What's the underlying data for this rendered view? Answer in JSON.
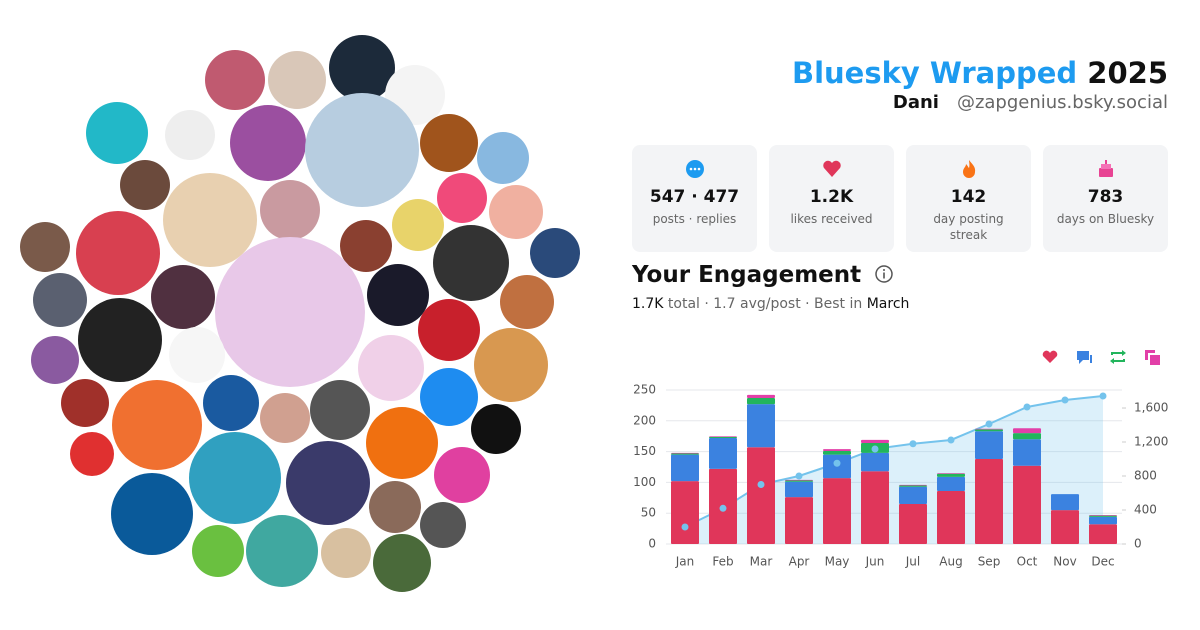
{
  "header": {
    "title": "Bluesky Wrapped",
    "year": "2025",
    "name": "Dani",
    "handle": "@zapgenius.bsky.social"
  },
  "stats": [
    {
      "value": "547 · 477",
      "label": "posts · replies"
    },
    {
      "value": "1.2K",
      "label": "likes received"
    },
    {
      "value": "142",
      "label": "day posting streak"
    },
    {
      "value": "783",
      "label": "days on Bluesky"
    }
  ],
  "engagement": {
    "title": "Your Engagement",
    "total": "1.7K",
    "text": "total · 1.7 avg/post · Best in",
    "best": "March"
  },
  "chart_data": {
    "type": "bar",
    "stacked": true,
    "grid": true,
    "categories": [
      "Jan",
      "Feb",
      "Mar",
      "Apr",
      "May",
      "Jun",
      "Jul",
      "Aug",
      "Sep",
      "Oct",
      "Nov",
      "Dec"
    ],
    "series": [
      {
        "color": "#e0365a",
        "values": [
          102,
          122,
          157,
          76,
          107,
          118,
          65,
          86,
          138,
          127,
          55,
          32
        ]
      },
      {
        "color": "#3b82e0",
        "values": [
          43,
          50,
          70,
          25,
          38,
          30,
          28,
          23,
          45,
          43,
          26,
          12
        ]
      },
      {
        "color": "#22b55c",
        "values": [
          2,
          2,
          10,
          2,
          6,
          16,
          2,
          5,
          3,
          10,
          0,
          2
        ]
      },
      {
        "color": "#e23fa8",
        "values": [
          1,
          1,
          5,
          1,
          3,
          5,
          1,
          1,
          1,
          8,
          0,
          1
        ]
      },
      {
        "color": "#74c3ec",
        "type": "line",
        "axis": "y2",
        "values": [
          200,
          420,
          700,
          800,
          950,
          1118,
          1180,
          1224,
          1412,
          1612,
          1694,
          1741
        ]
      }
    ],
    "ylim": [
      0,
      250
    ],
    "yticks": [
      0,
      50,
      100,
      150,
      200,
      250
    ],
    "y2lim": [
      0,
      1812
    ],
    "y2ticks": [
      0,
      400,
      800,
      {
        "value": 1200,
        "label": "1,200"
      },
      {
        "value": 1600,
        "label": "1,600"
      }
    ]
  }
}
